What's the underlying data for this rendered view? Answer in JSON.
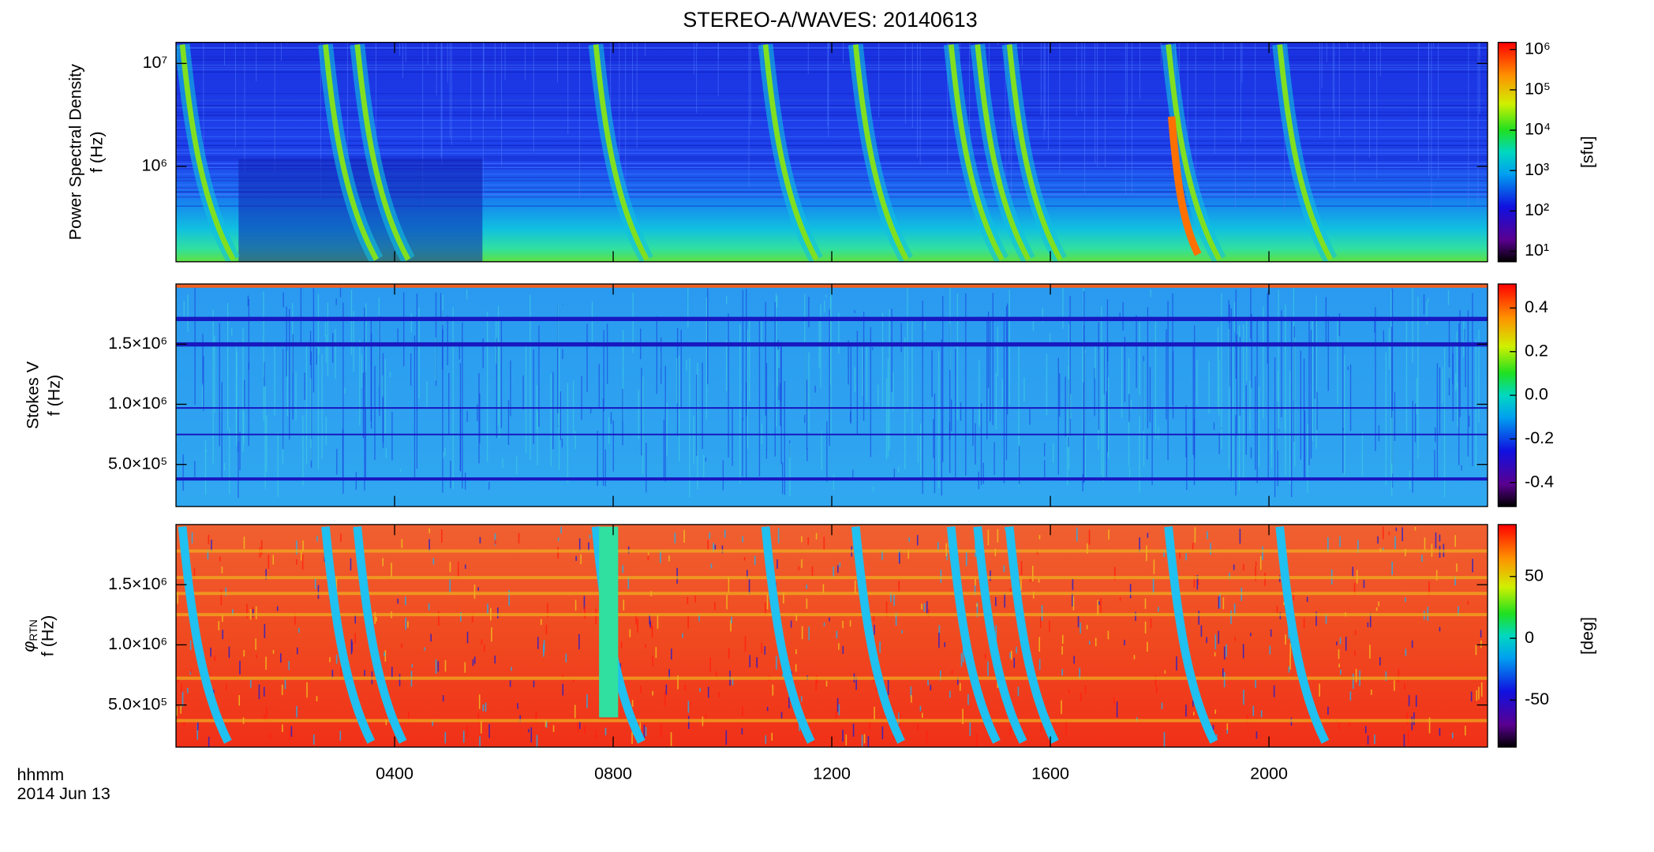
{
  "title": "STEREO-A/WAVES: 20140613",
  "chart_data": [
    {
      "type": "heatmap",
      "ylabel": "Power Spectral Density",
      "ylabel2": "f (Hz)",
      "log_y": true,
      "ylim": [
        119000,
        16000000
      ],
      "yticks": [
        {
          "value": 1000000,
          "label": "10⁶"
        },
        {
          "value": 10000000,
          "label": "10⁷"
        }
      ],
      "colorbar": {
        "log": true,
        "clim": [
          5.5,
          1500000
        ],
        "label": "[sfu]",
        "ticks": [
          {
            "value": 10,
            "label": "10¹"
          },
          {
            "value": 100,
            "label": "10²"
          },
          {
            "value": 1000,
            "label": "10³"
          },
          {
            "value": 10000,
            "label": "10⁴"
          },
          {
            "value": 100000,
            "label": "10⁵"
          },
          {
            "value": 1000000,
            "label": "10⁶"
          }
        ]
      }
    },
    {
      "type": "heatmap",
      "ylabel": "Stokes V",
      "ylabel2": "f (Hz)",
      "log_y": false,
      "ylim": [
        150000,
        2000000
      ],
      "yticks": [
        {
          "value": 500000,
          "label": "5.0×10⁵"
        },
        {
          "value": 1000000,
          "label": "1.0×10⁶"
        },
        {
          "value": 1500000,
          "label": "1.5×10⁶"
        }
      ],
      "colorbar": {
        "log": false,
        "clim": [
          -0.51,
          0.51
        ],
        "ticks": [
          -0.4,
          -0.2,
          {
            "value": 0,
            "label": "0.0"
          },
          0.2,
          0.4
        ]
      }
    },
    {
      "type": "heatmap",
      "ylabel": "φ",
      "ylabel_sub": "RTN",
      "ylabel2": "f (Hz)",
      "log_y": false,
      "ylim": [
        150000,
        2000000
      ],
      "yticks": [
        {
          "value": 500000,
          "label": "5.0×10⁵"
        },
        {
          "value": 1000000,
          "label": "1.0×10⁶"
        },
        {
          "value": 1500000,
          "label": "1.5×10⁶"
        }
      ],
      "colorbar": {
        "log": false,
        "clim": [
          -88,
          92
        ],
        "label": "[deg]",
        "ticks": [
          -50,
          0,
          50
        ]
      },
      "xlim": [
        0,
        24
      ],
      "xticks": [
        {
          "value": 4,
          "label": "0400"
        },
        {
          "value": 8,
          "label": "0800"
        },
        {
          "value": 12,
          "label": "1200"
        },
        {
          "value": 16,
          "label": "1600"
        },
        {
          "value": 20,
          "label": "2000"
        }
      ],
      "xlabel": "hhmm",
      "date": "2014 Jun 13"
    }
  ]
}
